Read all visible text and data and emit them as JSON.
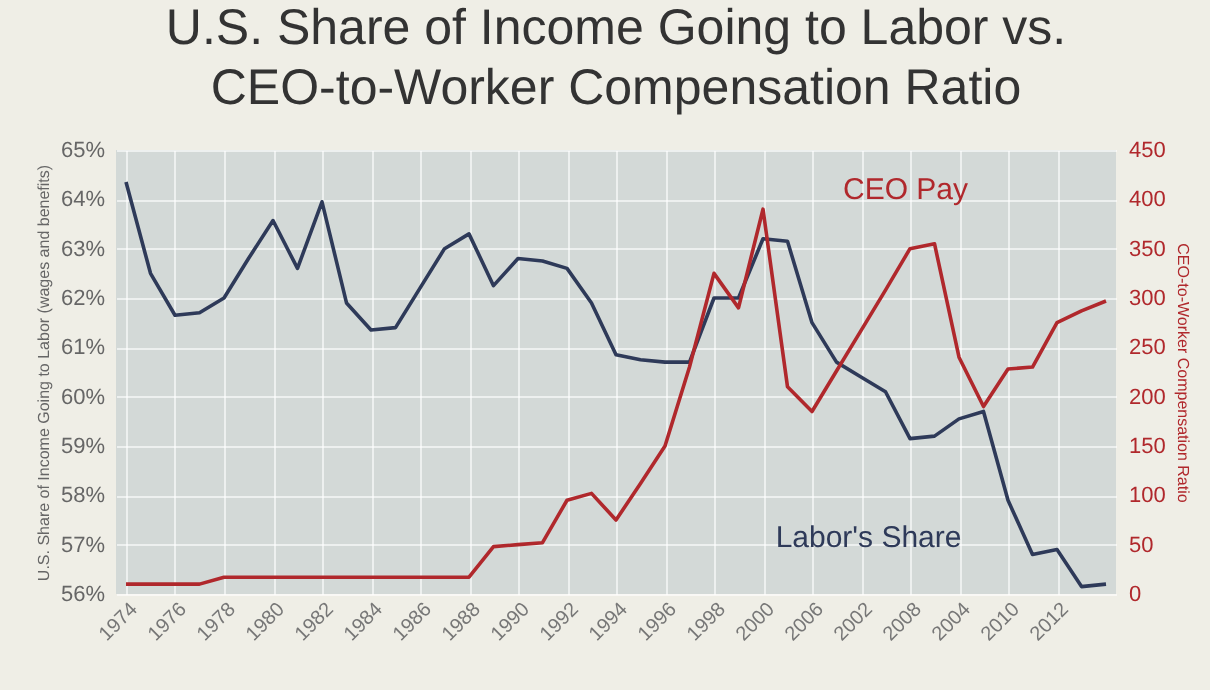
{
  "chart_data": {
    "type": "line",
    "title": "U.S. Share of Income Going to Labor vs.\nCEO-to-Worker Compensation Ratio",
    "ylabel": "U.S. Share of Income Going to Labor (wages and benefits)",
    "y2label": "CEO-to-Worker Compensation Ratio",
    "categories": [
      "1974",
      null,
      "1976",
      null,
      "1978",
      null,
      "1980",
      null,
      "1982",
      null,
      "1984",
      null,
      "1986",
      null,
      "1988",
      null,
      "1990",
      null,
      "1992",
      null,
      "1994",
      null,
      "1996",
      null,
      "1998",
      null,
      "2000",
      null,
      "2006",
      null,
      "2002",
      null,
      "2008",
      null,
      "2004",
      null,
      "2010",
      null,
      "2012",
      null,
      null
    ],
    "series": [
      {
        "name": "Labor's Share",
        "color": "#2e3a59",
        "values": [
          64.35,
          62.5,
          61.65,
          61.7,
          62.0,
          62.8,
          63.57,
          62.6,
          63.95,
          61.9,
          61.35,
          61.4,
          62.2,
          63.0,
          63.3,
          62.25,
          62.8,
          62.75,
          62.6,
          61.9,
          60.85,
          60.75,
          60.7,
          60.7,
          62.0,
          62.0,
          63.2,
          63.15,
          61.5,
          60.7,
          60.4,
          60.1,
          59.15,
          59.2,
          59.55,
          59.7,
          57.9,
          56.8,
          56.9,
          56.15,
          56.2
        ]
      },
      {
        "name": "CEO Pay",
        "color": "#b0282c",
        "axis": "y2",
        "values": [
          10,
          10,
          10,
          10,
          17,
          17,
          17,
          17,
          17,
          17,
          17,
          17,
          17,
          17,
          17,
          48,
          50,
          52,
          95,
          102,
          75,
          112,
          150,
          230,
          325,
          290,
          390,
          210,
          185,
          226,
          267,
          308,
          350,
          355,
          240,
          190,
          228,
          230,
          275,
          287,
          297
        ]
      }
    ],
    "ylim": [
      56,
      65
    ],
    "yticks": [
      {
        "value": 56,
        "label": "56%"
      },
      {
        "value": 57,
        "label": "57%"
      },
      {
        "value": 58,
        "label": "58%"
      },
      {
        "value": 59,
        "label": "59%"
      },
      {
        "value": 60,
        "label": "60%"
      },
      {
        "value": 61,
        "label": "61%"
      },
      {
        "value": 62,
        "label": "62%"
      },
      {
        "value": 63,
        "label": "63%"
      },
      {
        "value": 64,
        "label": "64%"
      },
      {
        "value": 65,
        "label": "65%"
      }
    ],
    "y2lim": [
      0,
      450
    ],
    "y2ticks": [
      0,
      50,
      100,
      150,
      200,
      250,
      300,
      350,
      400,
      450
    ],
    "grid": true,
    "line_style": "solid"
  }
}
